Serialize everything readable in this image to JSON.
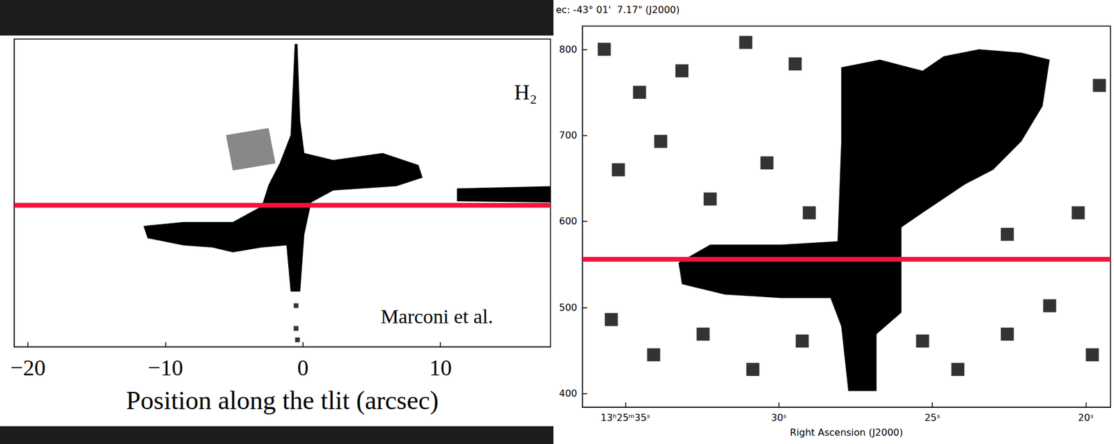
{
  "chart_data": [
    {
      "type": "polygon",
      "xlabel": "Position along the tlit (arcsec)",
      "annotations": [
        "H₂",
        "Marconi et al."
      ],
      "xlim": [
        -21,
        18
      ],
      "ylim": [
        0,
        100
      ],
      "xticks": [
        {
          "value": -20,
          "label": "−20"
        },
        {
          "value": -10,
          "label": "−10"
        },
        0,
        10
      ],
      "tick_labels": "x",
      "grid": false,
      "series": [
        {
          "type": "polygon",
          "color": "#888888",
          "points": [
            [
              -5.6,
              68.8
            ],
            [
              -2.5,
              71.1
            ],
            [
              -2.0,
              59.6
            ],
            [
              -5.1,
              57.3
            ]
          ]
        },
        {
          "type": "polygon",
          "color": "#000000",
          "points": [
            [
              -0.6,
              98.4
            ],
            [
              -0.4,
              98.4
            ],
            [
              -0.2,
              73.4
            ],
            [
              0.1,
              63.0
            ],
            [
              2.2,
              60.7
            ],
            [
              5.8,
              63.0
            ],
            [
              8.4,
              59.1
            ],
            [
              8.7,
              55.0
            ],
            [
              6.8,
              52.2
            ],
            [
              2.2,
              50.8
            ],
            [
              0.6,
              46.9
            ],
            [
              0.1,
              36.5
            ],
            [
              -0.2,
              18.0
            ],
            [
              -0.9,
              18.0
            ],
            [
              -1.2,
              33.0
            ],
            [
              -3.0,
              32.3
            ],
            [
              -5.1,
              30.7
            ],
            [
              -6.6,
              32.3
            ],
            [
              -8.7,
              33.0
            ],
            [
              -11.3,
              35.3
            ],
            [
              -11.6,
              39.3
            ],
            [
              -8.7,
              40.6
            ],
            [
              -5.1,
              40.6
            ],
            [
              -3.0,
              45.7
            ],
            [
              -2.5,
              52.7
            ],
            [
              -1.7,
              59.6
            ],
            [
              -0.9,
              68.8
            ]
          ]
        },
        {
          "type": "polygon",
          "color": "#000000",
          "points": [
            [
              11.2,
              51.5
            ],
            [
              18,
              52.2
            ],
            [
              18,
              46.9
            ],
            [
              11.2,
              47.3
            ]
          ]
        },
        {
          "type": "scatter",
          "marker": "square",
          "color": "#000000",
          "x": [
            -0.5,
            -0.5,
            -0.4
          ],
          "values": [
            13.4,
            6.0,
            2.3
          ]
        },
        {
          "type": "line",
          "color": "#f5133a",
          "x": [
            -21,
            18
          ],
          "values": [
            46,
            46
          ]
        }
      ]
    },
    {
      "type": "polygon",
      "title": "ec: -43° 01'  7.17\" (J2000)",
      "xlabel": "Right Ascension (J2000)",
      "xlim": [
        36.4,
        19.2
      ],
      "ylim": [
        384,
        827
      ],
      "xticks": [
        {
          "value": 35,
          "label": "13ʰ25ᵐ35ˢ"
        },
        {
          "value": 30,
          "label": "30ˢ"
        },
        {
          "value": 25,
          "label": "25ˢ"
        },
        {
          "value": 20,
          "label": "20ˢ"
        }
      ],
      "yticks": [
        400,
        500,
        600,
        700,
        800
      ],
      "grid": false,
      "series": [
        {
          "type": "polygon",
          "color": "#000000",
          "points": [
            [
              27.97,
              779
            ],
            [
              26.71,
              788
            ],
            [
              25.32,
              775
            ],
            [
              24.63,
              792
            ],
            [
              23.48,
              800
            ],
            [
              22.1,
              796
            ],
            [
              21.18,
              788
            ],
            [
              21.41,
              734
            ],
            [
              22.1,
              693
            ],
            [
              23.02,
              660
            ],
            [
              23.94,
              643
            ],
            [
              25.32,
              610
            ],
            [
              26.01,
              593
            ],
            [
              26.01,
              494
            ],
            [
              26.82,
              469
            ],
            [
              26.82,
              403
            ],
            [
              27.74,
              403
            ],
            [
              27.97,
              478
            ],
            [
              28.32,
              511
            ],
            [
              29.93,
              511
            ],
            [
              31.77,
              515
            ],
            [
              33.16,
              527
            ],
            [
              33.27,
              552
            ],
            [
              32.24,
              573
            ],
            [
              29.93,
              573
            ],
            [
              28.09,
              577
            ],
            [
              27.97,
              693
            ]
          ]
        },
        {
          "type": "scatter",
          "marker": "square",
          "color": "#000000",
          "x": [
            35.69,
            34.54,
            33.16,
            31.08,
            29.47,
            35.23,
            33.85,
            32.24,
            30.39,
            29.01,
            35.46,
            34.08,
            32.47,
            30.85,
            29.24,
            25.32,
            24.17,
            22.56,
            21.18,
            19.79,
            20.25,
            19.56,
            22.56
          ],
          "values": [
            800,
            750,
            775,
            808,
            783,
            660,
            693,
            626,
            668,
            610,
            486,
            445,
            469,
            428,
            461,
            461,
            428,
            469,
            502,
            445,
            610,
            758,
            585
          ]
        },
        {
          "type": "line",
          "color": "#f5133a",
          "x": [
            36.4,
            19.2
          ],
          "values": [
            556,
            556
          ]
        }
      ]
    }
  ]
}
